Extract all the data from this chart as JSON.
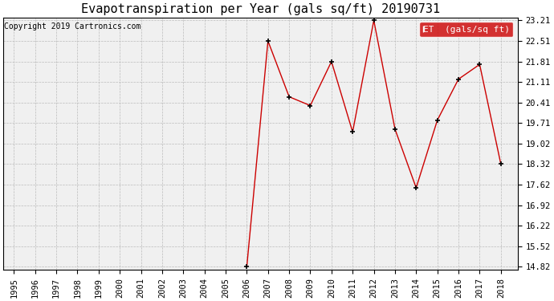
{
  "title": "Evapotranspiration per Year (gals sq/ft) 20190731",
  "copyright": "Copyright 2019 Cartronics.com",
  "legend_label": "ET  (gals/sq ft)",
  "years": [
    1995,
    1996,
    1997,
    1998,
    1999,
    2000,
    2001,
    2002,
    2003,
    2004,
    2005,
    2006,
    2007,
    2008,
    2009,
    2010,
    2011,
    2012,
    2013,
    2014,
    2015,
    2016,
    2017,
    2018
  ],
  "values": [
    null,
    null,
    null,
    null,
    null,
    null,
    null,
    null,
    null,
    null,
    null,
    14.82,
    22.51,
    20.61,
    20.31,
    21.81,
    19.41,
    23.21,
    19.51,
    17.51,
    19.81,
    21.21,
    21.71,
    18.32
  ],
  "line_color": "#cc0000",
  "marker_color": "black",
  "grid_color": "#bbbbbb",
  "background_color": "#ffffff",
  "plot_bg_color": "#f0f0f0",
  "ylim_min": 14.82,
  "ylim_max": 23.21,
  "yticks": [
    14.82,
    15.52,
    16.22,
    16.92,
    17.62,
    18.32,
    19.02,
    19.71,
    20.41,
    21.11,
    21.81,
    22.51,
    23.21
  ],
  "legend_bg": "#cc0000",
  "legend_text_color": "white",
  "title_fontsize": 11,
  "tick_fontsize": 7.5,
  "copyright_fontsize": 7,
  "legend_fontsize": 8
}
